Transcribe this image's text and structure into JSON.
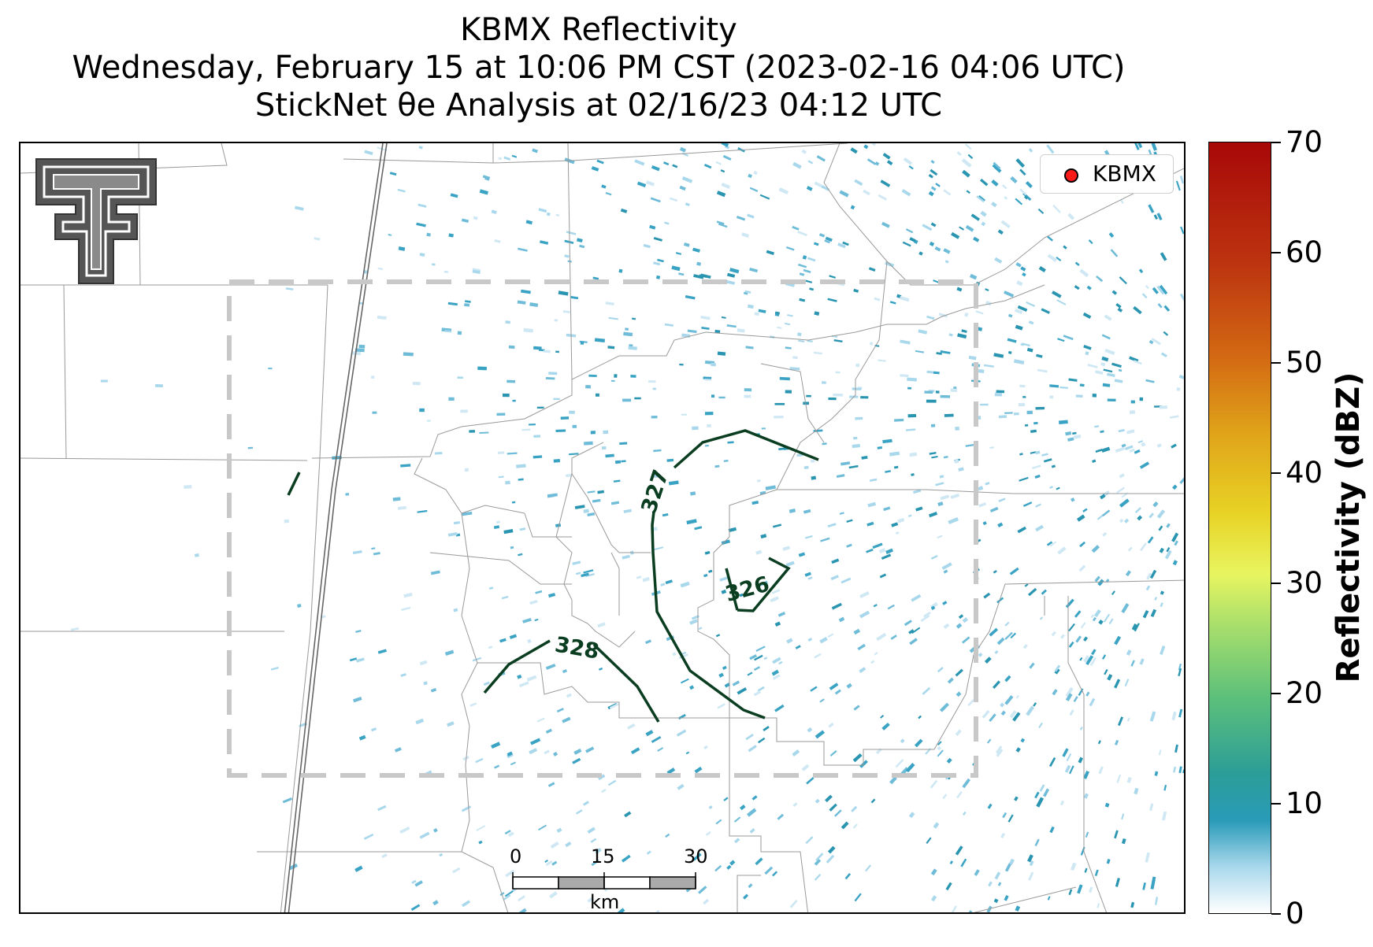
{
  "titles": {
    "line1": "KBMX Reflectivity",
    "line2": "Wednesday, February 15 at 10:06 PM CST (2023-02-16 04:06 UTC)",
    "line3": "StickNet θe Analysis at 02/16/23 04:12 UTC"
  },
  "legend": {
    "label": "KBMX",
    "marker_color": "#ff1a1a"
  },
  "colorbar": {
    "label": "Reflectivity (dBZ)",
    "ticks": [
      "0",
      "10",
      "20",
      "30",
      "40",
      "50",
      "60",
      "70"
    ],
    "range": [
      0,
      70
    ]
  },
  "contours": [
    {
      "label": "326",
      "color": "#0b3d21"
    },
    {
      "label": "327",
      "color": "#0b3d21"
    },
    {
      "label": "328",
      "color": "#0b3d21"
    }
  ],
  "scale_bar": {
    "ticks": [
      "0",
      "15",
      "30"
    ],
    "unit": "km"
  },
  "logo": {
    "name": "texas-tech-double-t-logo",
    "color": "#555555"
  },
  "analysis_box": {
    "style": "dashed",
    "color": "#c8c8c8"
  },
  "radar_colors": [
    "#cfe8f4",
    "#a9d8ec",
    "#6fbcd9",
    "#3aa3c4",
    "#2a95b1"
  ]
}
